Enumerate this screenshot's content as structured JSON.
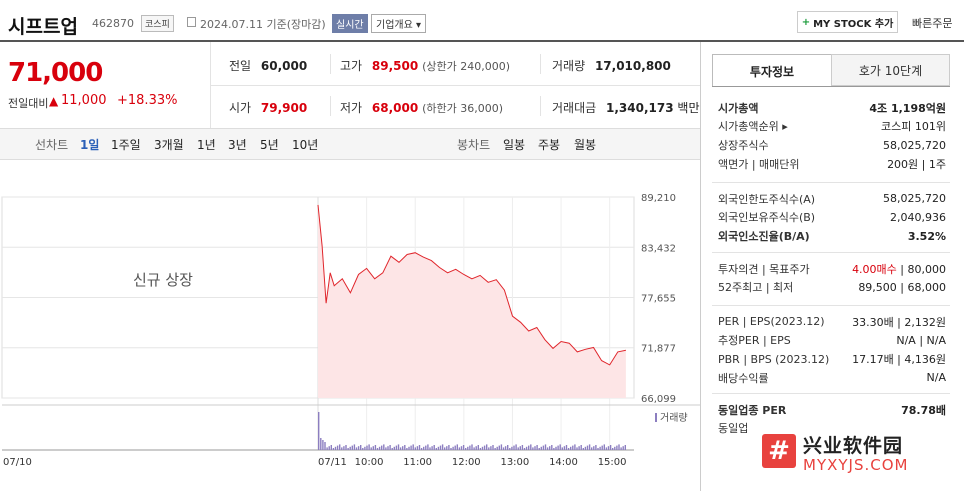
{
  "header": {
    "name": "시프트업",
    "code": "462870",
    "market": "코스피",
    "date_text": "2024.07.11 기준(장마감)",
    "live_label": "실시간",
    "overview_label": "기업개요 ▾",
    "mystock_label": "MY STOCK 추가",
    "quick_order": "빠른주문"
  },
  "price": {
    "current": "71,000",
    "change_label": "전일대비",
    "change_arrow": "▲",
    "change_value": "11,000",
    "change_pct": "+18.33%"
  },
  "stats": {
    "prev_label": "전일",
    "prev_value": "60,000",
    "high_label": "고가",
    "high_value": "89,500",
    "upper_limit": "(상한가 240,000)",
    "volume_label": "거래량",
    "volume_value": "17,010,800",
    "open_label": "시가",
    "open_value": "79,900",
    "low_label": "저가",
    "low_value": "68,000",
    "lower_limit": "(하한가 36,000)",
    "amount_label": "거래대금",
    "amount_value": "1,340,173",
    "amount_unit": "백만"
  },
  "toolbar": {
    "line_label": "선차트",
    "periods": [
      "1일",
      "1주일",
      "3개월",
      "1년",
      "3년",
      "5년",
      "10년"
    ],
    "candle_label": "봉차트",
    "candles": [
      "일봉",
      "주봉",
      "월봉"
    ]
  },
  "chart_data": {
    "type": "area",
    "annotation": "신규 상장",
    "volume_label": "거래량",
    "x_tick_labels": [
      "07/10",
      "07/11",
      "10:00",
      "11:00",
      "12:00",
      "13:00",
      "14:00",
      "15:00"
    ],
    "y_tick_labels": [
      "89,210",
      "83,432",
      "77,655",
      "71,877",
      "66,099"
    ],
    "ylim": [
      66099,
      89210
    ],
    "x_times": [
      "09:00",
      "09:05",
      "09:10",
      "09:15",
      "09:20",
      "09:30",
      "09:40",
      "09:50",
      "10:00",
      "10:10",
      "10:20",
      "10:30",
      "10:40",
      "10:50",
      "11:00",
      "11:10",
      "11:20",
      "11:30",
      "11:40",
      "11:50",
      "12:00",
      "12:10",
      "12:20",
      "12:30",
      "12:40",
      "12:50",
      "13:00",
      "13:10",
      "13:20",
      "13:30",
      "13:40",
      "13:50",
      "14:00",
      "14:10",
      "14:20",
      "14:30",
      "14:40",
      "14:50",
      "15:00",
      "15:10",
      "15:20"
    ],
    "series": [
      {
        "values": [
          88300,
          83600,
          77000,
          80500,
          79000,
          79800,
          78200,
          80300,
          81000,
          79800,
          80500,
          82400,
          81700,
          82600,
          82800,
          82300,
          81900,
          81100,
          80500,
          80900,
          80300,
          79800,
          80200,
          79400,
          79700,
          78500,
          75500,
          74800,
          73800,
          74200,
          72800,
          71800,
          72600,
          72400,
          71400,
          71700,
          71900,
          70400,
          69900,
          71400,
          71600
        ]
      }
    ],
    "color": "#e0262c",
    "fill": "#fde5e6",
    "volume_color": "#8c7ec0",
    "grid": true
  },
  "panel": {
    "tab_info": "투자정보",
    "tab_order": "호가 10단계",
    "rows1": [
      {
        "k": "시가총액",
        "v": "4조 1,198억원",
        "bold": true
      },
      {
        "k": "시가총액순위 ▸",
        "v": "코스피 101위"
      },
      {
        "k": "상장주식수",
        "v": "58,025,720"
      },
      {
        "k": "액면가 | 매매단위",
        "v": "200원 | 1주"
      }
    ],
    "rows2": [
      {
        "k": "외국인한도주식수(A)",
        "v": "58,025,720"
      },
      {
        "k": "외국인보유주식수(B)",
        "v": "2,040,936"
      },
      {
        "k": "외국인소진율(B/A)",
        "v": "3.52%",
        "bold": true
      }
    ],
    "rows3": [
      {
        "k": "투자의견 | 목표주가",
        "v_red": "4.00매수",
        "v": " | 80,000"
      },
      {
        "k": "52주최고 | 최저",
        "v": "89,500 | 68,000"
      }
    ],
    "rows4": [
      {
        "k": "PER | EPS(2023.12)",
        "v": "33.30배 | 2,132원"
      },
      {
        "k": "추정PER | EPS",
        "v": "N/A | N/A"
      },
      {
        "k": "PBR | BPS (2023.12)",
        "v": "17.17배 | 4,136원"
      },
      {
        "k": "배당수익률",
        "v": "N/A"
      }
    ],
    "rows5": [
      {
        "k": "동일업종 PER",
        "v": "78.78배",
        "bold": true
      },
      {
        "k": "동일업",
        "v": ""
      }
    ]
  },
  "watermark": {
    "logo_char": "#",
    "cn": "兴业软件园",
    "en": "MYXYJS.COM"
  }
}
